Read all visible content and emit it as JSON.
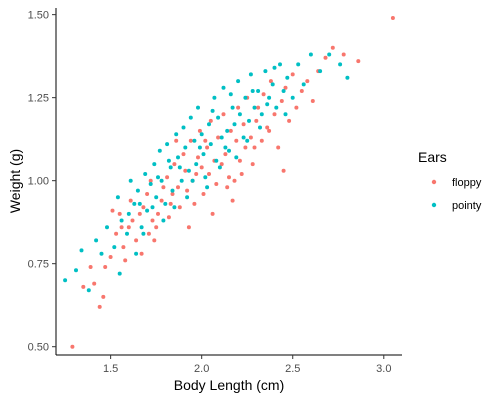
{
  "chart_data": {
    "type": "scatter",
    "xlabel": "Body Length (cm)",
    "ylabel": "Weight (g)",
    "xlim": [
      1.2,
      3.1
    ],
    "ylim": [
      0.475,
      1.52
    ],
    "x_ticks": [
      1.5,
      2.0,
      2.5,
      3.0
    ],
    "x_tick_labels": [
      "1.5",
      "2.0",
      "2.5",
      "3.0"
    ],
    "y_ticks": [
      0.5,
      0.75,
      1.0,
      1.25,
      1.5
    ],
    "y_tick_labels": [
      "0.50",
      "0.75",
      "1.00",
      "1.25",
      "1.50"
    ],
    "grid": false,
    "legend": {
      "title": "Ears",
      "position": "right"
    },
    "series": [
      {
        "name": "floppy",
        "color": "#F8766D",
        "points": [
          [
            1.29,
            0.5
          ],
          [
            1.35,
            0.68
          ],
          [
            1.39,
            0.74
          ],
          [
            1.41,
            0.69
          ],
          [
            1.44,
            0.62
          ],
          [
            1.46,
            0.65
          ],
          [
            1.47,
            0.74
          ],
          [
            1.5,
            0.77
          ],
          [
            1.51,
            0.91
          ],
          [
            1.53,
            0.84
          ],
          [
            1.55,
            0.9
          ],
          [
            1.57,
            0.8
          ],
          [
            1.58,
            0.76
          ],
          [
            1.6,
            0.86
          ],
          [
            1.62,
            0.88
          ],
          [
            1.64,
            0.82
          ],
          [
            1.66,
            0.9
          ],
          [
            1.68,
            0.92
          ],
          [
            1.7,
            0.96
          ],
          [
            1.71,
            0.84
          ],
          [
            1.73,
            0.88
          ],
          [
            1.74,
            0.82
          ],
          [
            1.76,
            0.9
          ],
          [
            1.78,
            0.94
          ],
          [
            1.79,
            0.98
          ],
          [
            1.81,
            1.01
          ],
          [
            1.82,
            0.89
          ],
          [
            1.84,
            0.96
          ],
          [
            1.85,
            1.05
          ],
          [
            1.87,
            0.98
          ],
          [
            1.88,
            0.92
          ],
          [
            1.9,
            1.08
          ],
          [
            1.91,
            1.03
          ],
          [
            1.92,
            0.97
          ],
          [
            1.94,
            1.12
          ],
          [
            1.95,
            1.0
          ],
          [
            1.96,
            0.93
          ],
          [
            1.98,
            1.07
          ],
          [
            1.99,
            1.15
          ],
          [
            2.0,
            1.04
          ],
          [
            2.01,
            0.96
          ],
          [
            2.03,
            1.1
          ],
          [
            2.04,
            1.02
          ],
          [
            2.05,
            1.18
          ],
          [
            2.07,
            1.06
          ],
          [
            2.08,
            0.99
          ],
          [
            2.09,
            1.13
          ],
          [
            2.11,
            1.05
          ],
          [
            2.12,
            1.2
          ],
          [
            2.13,
            1.08
          ],
          [
            2.15,
            1.01
          ],
          [
            2.16,
            1.15
          ],
          [
            2.17,
            0.94
          ],
          [
            2.19,
            1.12
          ],
          [
            2.2,
            1.22
          ],
          [
            2.21,
            1.06
          ],
          [
            2.23,
            1.17
          ],
          [
            2.24,
            1.1
          ],
          [
            2.25,
            1.25
          ],
          [
            2.27,
            1.13
          ],
          [
            2.28,
            1.05
          ],
          [
            2.3,
            1.18
          ],
          [
            2.31,
            1.22
          ],
          [
            2.33,
            1.12
          ],
          [
            2.34,
            1.26
          ],
          [
            2.36,
            1.16
          ],
          [
            2.38,
            1.3
          ],
          [
            2.4,
            1.2
          ],
          [
            2.42,
            1.1
          ],
          [
            2.44,
            1.24
          ],
          [
            2.46,
            1.28
          ],
          [
            2.48,
            1.18
          ],
          [
            2.5,
            1.32
          ],
          [
            2.52,
            1.22
          ],
          [
            2.55,
            1.27
          ],
          [
            2.58,
            1.3
          ],
          [
            2.61,
            1.24
          ],
          [
            2.64,
            1.33
          ],
          [
            2.68,
            1.37
          ],
          [
            2.72,
            1.4
          ],
          [
            2.78,
            1.38
          ],
          [
            2.86,
            1.36
          ],
          [
            3.05,
            1.49
          ],
          [
            2.45,
            1.03
          ],
          [
            1.86,
            1.12
          ],
          [
            1.75,
            0.86
          ],
          [
            2.06,
            0.9
          ],
          [
            1.93,
            0.86
          ],
          [
            2.18,
            1.0
          ],
          [
            1.67,
            0.78
          ],
          [
            1.56,
            0.86
          ],
          [
            1.61,
            0.94
          ],
          [
            2.22,
            1.02
          ],
          [
            2.29,
            1.1
          ],
          [
            2.37,
            1.15
          ],
          [
            1.97,
            1.02
          ],
          [
            1.83,
            0.93
          ],
          [
            1.72,
            1.0
          ],
          [
            2.02,
            1.12
          ],
          [
            2.14,
            0.98
          ]
        ]
      },
      {
        "name": "pointy",
        "color": "#00BFC4",
        "points": [
          [
            1.25,
            0.7
          ],
          [
            1.31,
            0.73
          ],
          [
            1.34,
            0.79
          ],
          [
            1.38,
            0.67
          ],
          [
            1.42,
            0.82
          ],
          [
            1.45,
            0.78
          ],
          [
            1.48,
            0.86
          ],
          [
            1.52,
            0.8
          ],
          [
            1.54,
            0.95
          ],
          [
            1.56,
            0.88
          ],
          [
            1.59,
            0.84
          ],
          [
            1.61,
            1.0
          ],
          [
            1.63,
            0.93
          ],
          [
            1.65,
            0.97
          ],
          [
            1.67,
            0.86
          ],
          [
            1.69,
            1.02
          ],
          [
            1.7,
            0.91
          ],
          [
            1.72,
            0.99
          ],
          [
            1.74,
            1.05
          ],
          [
            1.75,
            0.95
          ],
          [
            1.77,
            1.09
          ],
          [
            1.78,
            1.0
          ],
          [
            1.8,
            0.93
          ],
          [
            1.81,
            1.11
          ],
          [
            1.83,
            1.04
          ],
          [
            1.84,
            0.97
          ],
          [
            1.86,
            1.14
          ],
          [
            1.87,
            1.07
          ],
          [
            1.89,
            1.0
          ],
          [
            1.9,
            1.16
          ],
          [
            1.91,
            1.1
          ],
          [
            1.93,
            1.03
          ],
          [
            1.94,
            1.19
          ],
          [
            1.96,
            1.12
          ],
          [
            1.97,
            1.05
          ],
          [
            1.98,
            1.22
          ],
          [
            2.0,
            1.14
          ],
          [
            2.01,
            1.08
          ],
          [
            2.02,
            1.01
          ],
          [
            2.04,
            1.17
          ],
          [
            2.05,
            1.11
          ],
          [
            2.07,
            1.25
          ],
          [
            2.08,
            1.06
          ],
          [
            2.09,
            1.19
          ],
          [
            2.11,
            1.13
          ],
          [
            2.12,
            1.28
          ],
          [
            2.14,
            1.15
          ],
          [
            2.15,
            1.09
          ],
          [
            2.17,
            1.22
          ],
          [
            2.18,
            1.17
          ],
          [
            2.2,
            1.3
          ],
          [
            2.21,
            1.2
          ],
          [
            2.23,
            1.13
          ],
          [
            2.24,
            1.25
          ],
          [
            2.26,
            1.18
          ],
          [
            2.27,
            1.32
          ],
          [
            2.29,
            1.22
          ],
          [
            2.31,
            1.27
          ],
          [
            2.33,
            1.2
          ],
          [
            2.35,
            1.33
          ],
          [
            2.37,
            1.25
          ],
          [
            2.39,
            1.29
          ],
          [
            2.41,
            1.22
          ],
          [
            2.43,
            1.35
          ],
          [
            2.45,
            1.27
          ],
          [
            2.47,
            1.31
          ],
          [
            2.5,
            1.25
          ],
          [
            2.53,
            1.35
          ],
          [
            2.56,
            1.29
          ],
          [
            2.6,
            1.38
          ],
          [
            2.65,
            1.33
          ],
          [
            2.7,
            1.38
          ],
          [
            2.76,
            1.35
          ],
          [
            2.8,
            1.31
          ],
          [
            1.55,
            0.72
          ],
          [
            1.64,
            0.78
          ],
          [
            1.68,
            0.84
          ],
          [
            1.79,
            0.88
          ],
          [
            1.85,
            0.92
          ],
          [
            1.92,
            0.95
          ],
          [
            2.03,
            0.98
          ],
          [
            1.88,
            1.04
          ],
          [
            1.73,
            0.92
          ],
          [
            1.99,
            1.1
          ],
          [
            2.1,
            1.04
          ],
          [
            2.16,
            1.26
          ],
          [
            2.25,
            1.12
          ],
          [
            2.32,
            1.16
          ],
          [
            2.4,
            1.34
          ],
          [
            2.46,
            1.2
          ],
          [
            1.82,
            1.06
          ],
          [
            1.95,
            1.0
          ],
          [
            2.06,
            1.21
          ],
          [
            2.13,
            1.1
          ],
          [
            2.19,
            1.07
          ],
          [
            1.76,
            1.01
          ],
          [
            2.28,
            1.27
          ],
          [
            2.36,
            1.23
          ],
          [
            1.6,
            0.9
          ],
          [
            1.66,
            0.93
          ]
        ]
      }
    ]
  }
}
